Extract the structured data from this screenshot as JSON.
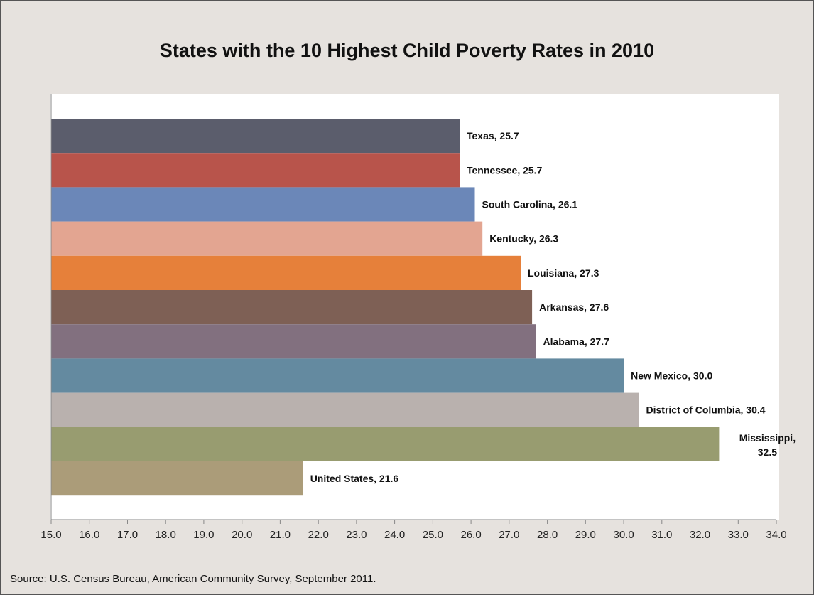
{
  "chart_data": {
    "type": "bar",
    "orientation": "horizontal",
    "title": "States with the 10 Highest Child Poverty Rates in 2010",
    "categories": [
      "Texas",
      "Tennessee",
      "South Carolina",
      "Kentucky",
      "Louisiana",
      "Arkansas",
      "Alabama",
      "New Mexico",
      "District of Columbia",
      "Mississippi",
      "United States"
    ],
    "values": [
      25.7,
      25.7,
      26.1,
      26.3,
      27.3,
      27.6,
      27.7,
      30.0,
      30.4,
      32.5,
      21.6
    ],
    "data_labels": [
      "Texas, 25.7",
      "Tennessee, 25.7",
      "South Carolina, 26.1",
      "Kentucky, 26.3",
      "Louisiana, 27.3",
      "Arkansas, 27.6",
      "Alabama, 27.7",
      "New Mexico, 30.0",
      "District of Columbia, 30.4",
      "Mississippi, 32.5",
      "United States, 21.6"
    ],
    "colors": [
      "#5b5d6c",
      "#b8544b",
      "#6b87b8",
      "#e3a591",
      "#e6803a",
      "#7e6055",
      "#82707f",
      "#648aa0",
      "#b9b1ae",
      "#989c70",
      "#ab9c79"
    ],
    "xlim": [
      15.0,
      34.0
    ],
    "x_ticks": [
      "15.0",
      "16.0",
      "17.0",
      "18.0",
      "19.0",
      "20.0",
      "21.0",
      "22.0",
      "23.0",
      "24.0",
      "25.0",
      "26.0",
      "27.0",
      "28.0",
      "29.0",
      "30.0",
      "31.0",
      "32.0",
      "33.0",
      "34.0"
    ],
    "xlabel": "",
    "ylabel": "",
    "grid": false,
    "legend": "none"
  },
  "source": "Source: U.S. Census Bureau, American Community Survey, September 2011."
}
